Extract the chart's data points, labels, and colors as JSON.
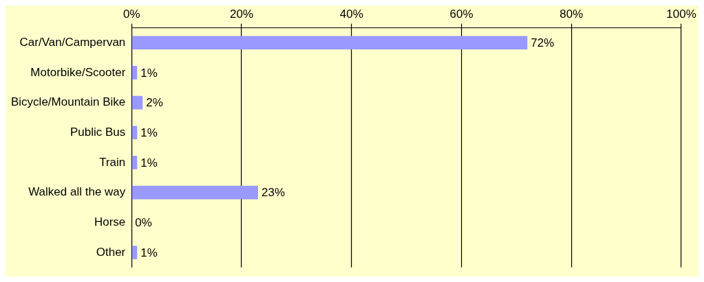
{
  "chart_data": {
    "type": "bar",
    "orientation": "horizontal",
    "categories": [
      "Car/Van/Campervan",
      "Motorbike/Scooter",
      "Bicycle/Mountain Bike",
      "Public Bus",
      "Train",
      "Walked all the way",
      "Horse",
      "Other"
    ],
    "values": [
      72,
      1,
      2,
      1,
      1,
      23,
      0,
      1
    ],
    "value_labels": [
      "72%",
      "1%",
      "2%",
      "1%",
      "1%",
      "23%",
      "0%",
      "1%"
    ],
    "color": "#9999ff",
    "xlim": [
      0,
      100
    ],
    "xticks": [
      {
        "value": 0,
        "label": "0%"
      },
      {
        "value": 20,
        "label": "20%"
      },
      {
        "value": 40,
        "label": "40%"
      },
      {
        "value": 60,
        "label": "60%"
      },
      {
        "value": 80,
        "label": "80%"
      },
      {
        "value": 100,
        "label": "100%"
      }
    ],
    "grid": "x",
    "legend": false
  }
}
